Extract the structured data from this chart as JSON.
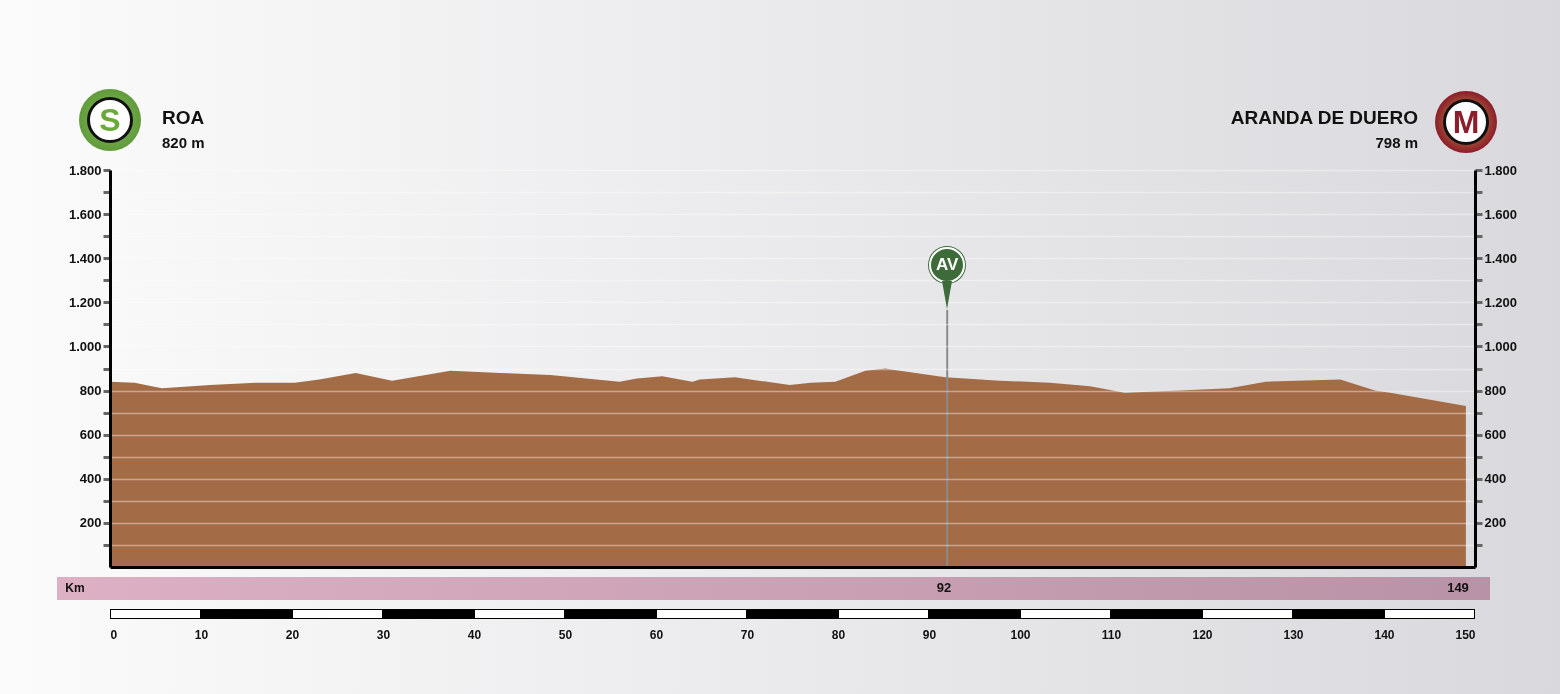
{
  "chart_data": {
    "type": "area",
    "annotations": [
      "S",
      "ROA",
      "820 m",
      "M",
      "ARANDA DE DUERO",
      "798 m",
      "Km",
      "92",
      "149"
    ],
    "xlim": [
      0,
      150
    ],
    "xticks": [
      0,
      10,
      20,
      30,
      40,
      50,
      60,
      70,
      80,
      90,
      100,
      110,
      120,
      130,
      140,
      150
    ],
    "ylim": [
      0,
      1800
    ],
    "yticks": [
      {
        "value": 100,
        "label": null
      },
      200,
      {
        "value": 300,
        "label": null
      },
      400,
      {
        "value": 500,
        "label": null
      },
      600,
      {
        "value": 700,
        "label": null
      },
      800,
      {
        "value": 900,
        "label": null
      },
      {
        "value": 1000,
        "label": "1.000"
      },
      {
        "value": 1100,
        "label": null
      },
      {
        "value": 1200,
        "label": "1.200"
      },
      {
        "value": 1300,
        "label": null
      },
      {
        "value": 1400,
        "label": "1.400"
      },
      {
        "value": 1500,
        "label": null
      },
      {
        "value": 1600,
        "label": "1.600"
      },
      {
        "value": 1700,
        "label": null
      },
      {
        "value": 1800,
        "label": "1.800"
      }
    ],
    "y2lim": [
      0,
      1800
    ],
    "y2ticks": [
      {
        "value": 100,
        "label": null
      },
      200,
      {
        "value": 300,
        "label": null
      },
      400,
      {
        "value": 500,
        "label": null
      },
      600,
      {
        "value": 700,
        "label": null
      },
      800,
      {
        "value": 900,
        "label": null
      },
      {
        "value": 1000,
        "label": "1.000"
      },
      {
        "value": 1100,
        "label": null
      },
      {
        "value": 1200,
        "label": "1.200"
      },
      {
        "value": 1300,
        "label": null
      },
      {
        "value": 1400,
        "label": "1.400"
      },
      {
        "value": 1500,
        "label": null
      },
      {
        "value": 1600,
        "label": "1.600"
      },
      {
        "value": 1700,
        "label": null
      },
      {
        "value": 1800,
        "label": "1.800"
      }
    ],
    "grid": "y",
    "ref_lines": [
      {
        "axis": "x",
        "value": 92,
        "label": "AV"
      }
    ],
    "series": [
      {
        "color": "#a36c47",
        "x": [
          0,
          2.7,
          5.7,
          11,
          16,
          20.3,
          23,
          27,
          31,
          37.4,
          42.9,
          48.4,
          56,
          57.9,
          60.7,
          64,
          64.8,
          68.7,
          74.7,
          77,
          79.7,
          83,
          85.2,
          86.8,
          91.8,
          97.8,
          103.3,
          107.7,
          111.5,
          117.6,
          123,
          127,
          135.2,
          139,
          140.7,
          149
        ],
        "values": [
          840,
          835,
          810,
          825,
          835,
          835,
          850,
          880,
          845,
          890,
          880,
          870,
          840,
          855,
          865,
          840,
          850,
          860,
          825,
          835,
          840,
          890,
          900,
          890,
          860,
          845,
          835,
          820,
          790,
          800,
          810,
          840,
          850,
          800,
          790,
          730
        ]
      }
    ]
  }
}
